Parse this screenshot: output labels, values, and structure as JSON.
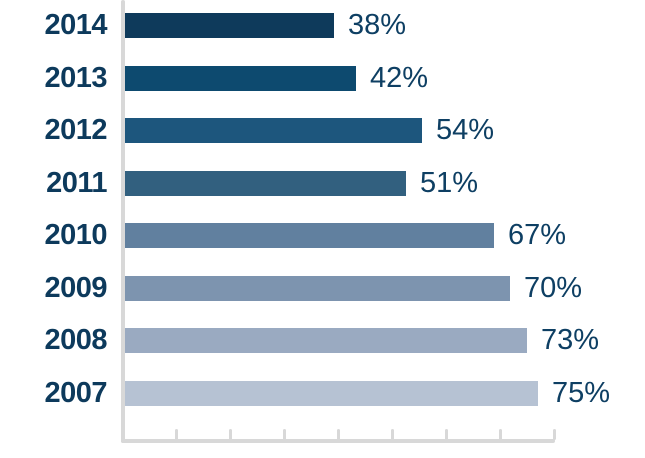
{
  "chart_data": {
    "type": "bar",
    "orientation": "horizontal",
    "title": "",
    "xlabel": "",
    "ylabel": "",
    "categories": [
      "2014",
      "2013",
      "2012",
      "2011",
      "2010",
      "2009",
      "2008",
      "2007"
    ],
    "values": [
      38,
      42,
      54,
      51,
      67,
      70,
      73,
      75
    ],
    "value_labels": [
      "38%",
      "42%",
      "54%",
      "51%",
      "67%",
      "70%",
      "73%",
      "75%"
    ],
    "bar_colors": [
      "#0e3a5b",
      "#0d4a6f",
      "#1d567d",
      "#32607f",
      "#61809f",
      "#7d94af",
      "#9aaac1",
      "#b6c2d3"
    ],
    "xlim": [
      0,
      80
    ],
    "tick_interval": 10,
    "tick_count": 8,
    "grid": false,
    "legend": null,
    "axis_color": "#d8d8d8",
    "category_label_color": "#0d3a5c",
    "value_label_color": "#0e3f63"
  }
}
